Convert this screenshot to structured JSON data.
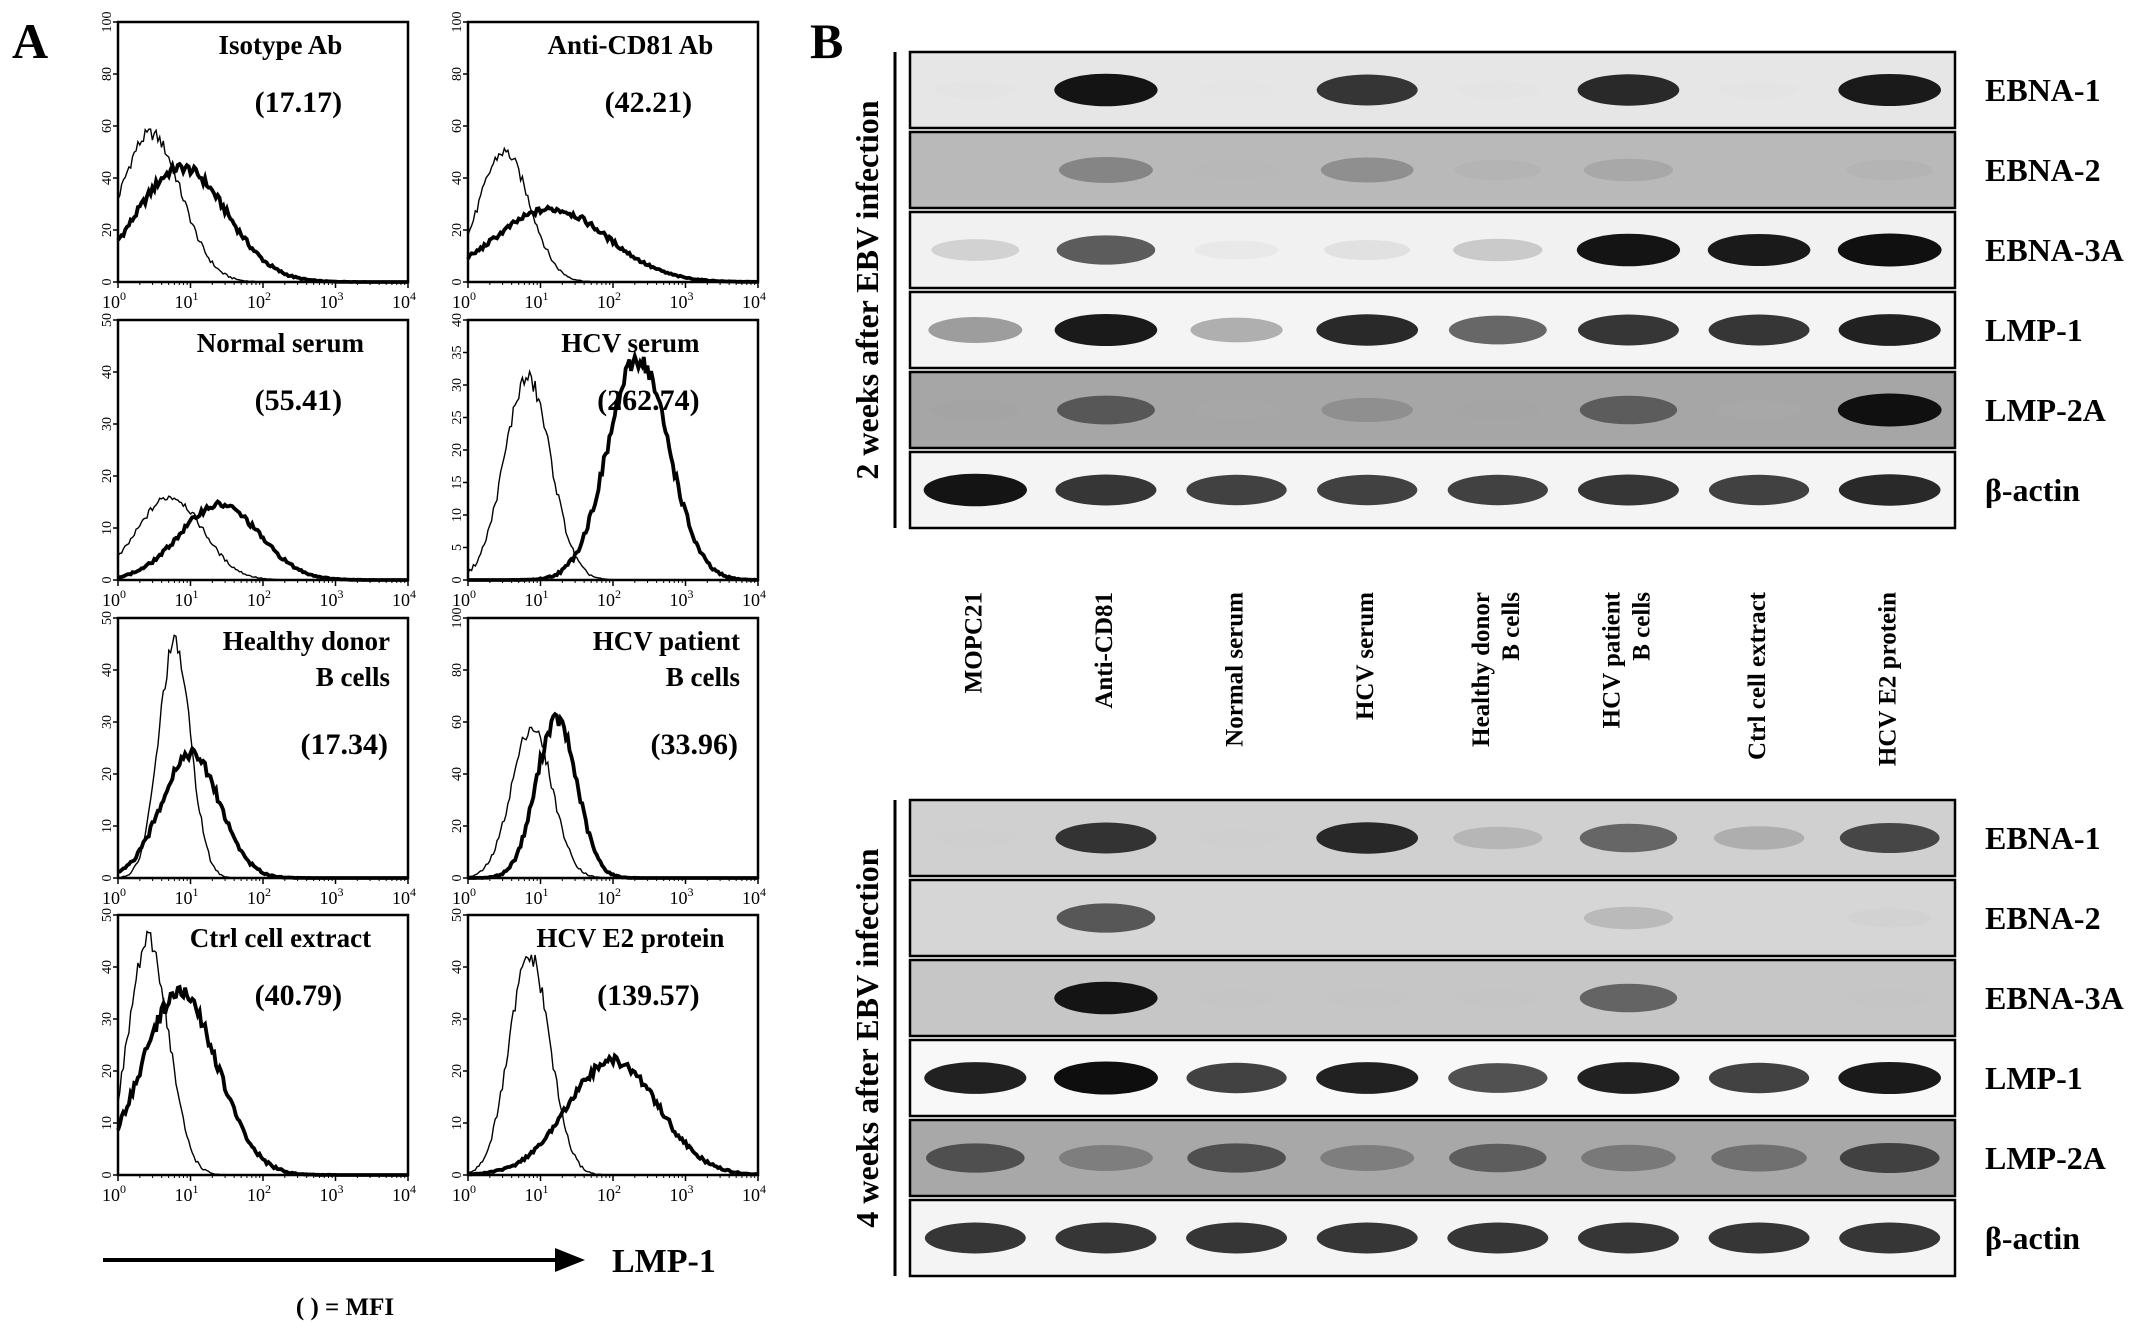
{
  "panel_a": {
    "letter": "A",
    "x_axis_label": "LMP-1",
    "mfi_note": "( ) = MFI",
    "x_tick_base": "10",
    "x_tick_exponents": [
      "0",
      "1",
      "2",
      "3",
      "4"
    ],
    "histograms": [
      {
        "title_lines": [
          "Isotype Ab"
        ],
        "mfi": "(17.17)",
        "y_ticks": [
          "0",
          "20",
          "40",
          "60",
          "80",
          "100"
        ],
        "ymax": 100,
        "ctrl_peak_log": 0.45,
        "ctrl_peak": 57,
        "ctrl_sd": 0.42,
        "tr_peak_log": 0.88,
        "tr_peak": 44,
        "tr_sd": 0.62
      },
      {
        "title_lines": [
          "Anti-CD81 Ab"
        ],
        "mfi": "(42.21)",
        "y_ticks": [
          "0",
          "20",
          "40",
          "60",
          "80",
          "100"
        ],
        "ymax": 100,
        "ctrl_peak_log": 0.5,
        "ctrl_peak": 50,
        "ctrl_sd": 0.35,
        "tr_peak_log": 1.15,
        "tr_peak": 28,
        "tr_sd": 0.78
      },
      {
        "title_lines": [
          "Normal serum"
        ],
        "mfi": "(55.41)",
        "y_ticks": [
          "0",
          "10",
          "20",
          "30",
          "40",
          "50"
        ],
        "ymax": 50,
        "ctrl_peak_log": 0.72,
        "ctrl_peak": 16,
        "ctrl_sd": 0.45,
        "tr_peak_log": 1.4,
        "tr_peak": 14.5,
        "tr_sd": 0.55
      },
      {
        "title_lines": [
          "HCV serum"
        ],
        "mfi": "(262.74)",
        "y_ticks": [
          "0",
          "5",
          "10",
          "15",
          "20",
          "25",
          "30",
          "35",
          "40"
        ],
        "ymax": 40,
        "ctrl_peak_log": 0.82,
        "ctrl_peak": 31,
        "ctrl_sd": 0.32,
        "tr_peak_log": 2.35,
        "tr_peak": 34,
        "tr_sd": 0.42
      },
      {
        "title_lines": [
          "Healthy donor",
          "B cells"
        ],
        "mfi": "(17.34)",
        "y_ticks": [
          "0",
          "10",
          "20",
          "30",
          "40",
          "50"
        ],
        "ymax": 50,
        "ctrl_peak_log": 0.78,
        "ctrl_peak": 45,
        "ctrl_sd": 0.22,
        "tr_peak_log": 1.0,
        "tr_peak": 24,
        "tr_sd": 0.4
      },
      {
        "title_lines": [
          "HCV patient",
          "B cells"
        ],
        "mfi": "(33.96)",
        "y_ticks": [
          "0",
          "20",
          "40",
          "60",
          "80",
          "100"
        ],
        "ymax": 100,
        "ctrl_peak_log": 0.88,
        "ctrl_peak": 58,
        "ctrl_sd": 0.28,
        "tr_peak_log": 1.22,
        "tr_peak": 61,
        "tr_sd": 0.28
      },
      {
        "title_lines": [
          "Ctrl cell extract"
        ],
        "mfi": "(40.79)",
        "y_ticks": [
          "0",
          "10",
          "20",
          "30",
          "40",
          "50"
        ],
        "ymax": 50,
        "ctrl_peak_log": 0.42,
        "ctrl_peak": 45,
        "ctrl_sd": 0.28,
        "tr_peak_log": 0.85,
        "tr_peak": 35,
        "tr_sd": 0.52
      },
      {
        "title_lines": [
          "HCV E2 protein"
        ],
        "mfi": "(139.57)",
        "y_ticks": [
          "0",
          "10",
          "20",
          "30",
          "40",
          "50"
        ],
        "ymax": 50,
        "ctrl_peak_log": 0.85,
        "ctrl_peak": 42,
        "ctrl_sd": 0.28,
        "tr_peak_log": 2.0,
        "tr_peak": 22,
        "tr_sd": 0.62
      }
    ]
  },
  "panel_b": {
    "letter": "B",
    "lanes": [
      {
        "lines": [
          "MOPC21"
        ]
      },
      {
        "lines": [
          "Anti-CD81"
        ]
      },
      {
        "lines": [
          "Normal serum"
        ]
      },
      {
        "lines": [
          "HCV serum"
        ]
      },
      {
        "lines": [
          "Healthy donor",
          "B cells"
        ]
      },
      {
        "lines": [
          "HCV patient",
          "B cells"
        ]
      },
      {
        "lines": [
          "Ctrl cell extract"
        ]
      },
      {
        "lines": [
          "HCV E2 protein"
        ]
      }
    ],
    "blocks": [
      {
        "time_label": "2 weeks after EBV infection",
        "rows": [
          {
            "label": "EBNA-1",
            "bg": "#e6e6e6",
            "intensity": [
              0.03,
              0.95,
              0.02,
              0.85,
              0.05,
              0.88,
              0.03,
              0.92
            ]
          },
          {
            "label": "EBNA-2",
            "bg": "#b9b9b9",
            "intensity": [
              0.1,
              0.55,
              0.15,
              0.5,
              0.22,
              0.35,
              0.12,
              0.22
            ]
          },
          {
            "label": "EBNA-3A",
            "bg": "#f1f1f1",
            "intensity": [
              0.3,
              0.75,
              0.12,
              0.2,
              0.35,
              0.95,
              0.92,
              0.97
            ]
          },
          {
            "label": "LMP-1",
            "bg": "#f4f4f4",
            "intensity": [
              0.55,
              0.92,
              0.48,
              0.88,
              0.72,
              0.85,
              0.85,
              0.9
            ]
          },
          {
            "label": "LMP-2A",
            "bg": "#a6a6a6",
            "intensity": [
              0.25,
              0.72,
              0.18,
              0.45,
              0.22,
              0.7,
              0.12,
              0.97
            ]
          },
          {
            "label": "β-actin",
            "bg": "#f4f4f4",
            "intensity": [
              0.95,
              0.85,
              0.82,
              0.82,
              0.82,
              0.85,
              0.82,
              0.88
            ]
          }
        ]
      },
      {
        "time_label": "4 weeks after EBV infection",
        "rows": [
          {
            "label": "EBNA-1",
            "bg": "#d0d0d0",
            "intensity": [
              0.04,
              0.85,
              0.08,
              0.88,
              0.35,
              0.7,
              0.4,
              0.8
            ]
          },
          {
            "label": "EBNA-2",
            "bg": "#d6d6d6",
            "intensity": [
              0.02,
              0.75,
              0.02,
              0.02,
              0.02,
              0.35,
              0.02,
              0.12
            ]
          },
          {
            "label": "EBNA-3A",
            "bg": "#c6c6c6",
            "intensity": [
              0.05,
              0.95,
              0.04,
              0.1,
              0.08,
              0.7,
              0.05,
              0.1
            ]
          },
          {
            "label": "LMP-1",
            "bg": "#f8f8f8",
            "intensity": [
              0.9,
              0.98,
              0.82,
              0.9,
              0.78,
              0.9,
              0.82,
              0.92
            ]
          },
          {
            "label": "LMP-2A",
            "bg": "#a8a8a8",
            "intensity": [
              0.75,
              0.55,
              0.75,
              0.55,
              0.7,
              0.58,
              0.62,
              0.8
            ]
          },
          {
            "label": "β-actin",
            "bg": "#f4f4f4",
            "intensity": [
              0.85,
              0.85,
              0.85,
              0.85,
              0.85,
              0.85,
              0.85,
              0.85
            ]
          }
        ]
      }
    ]
  }
}
